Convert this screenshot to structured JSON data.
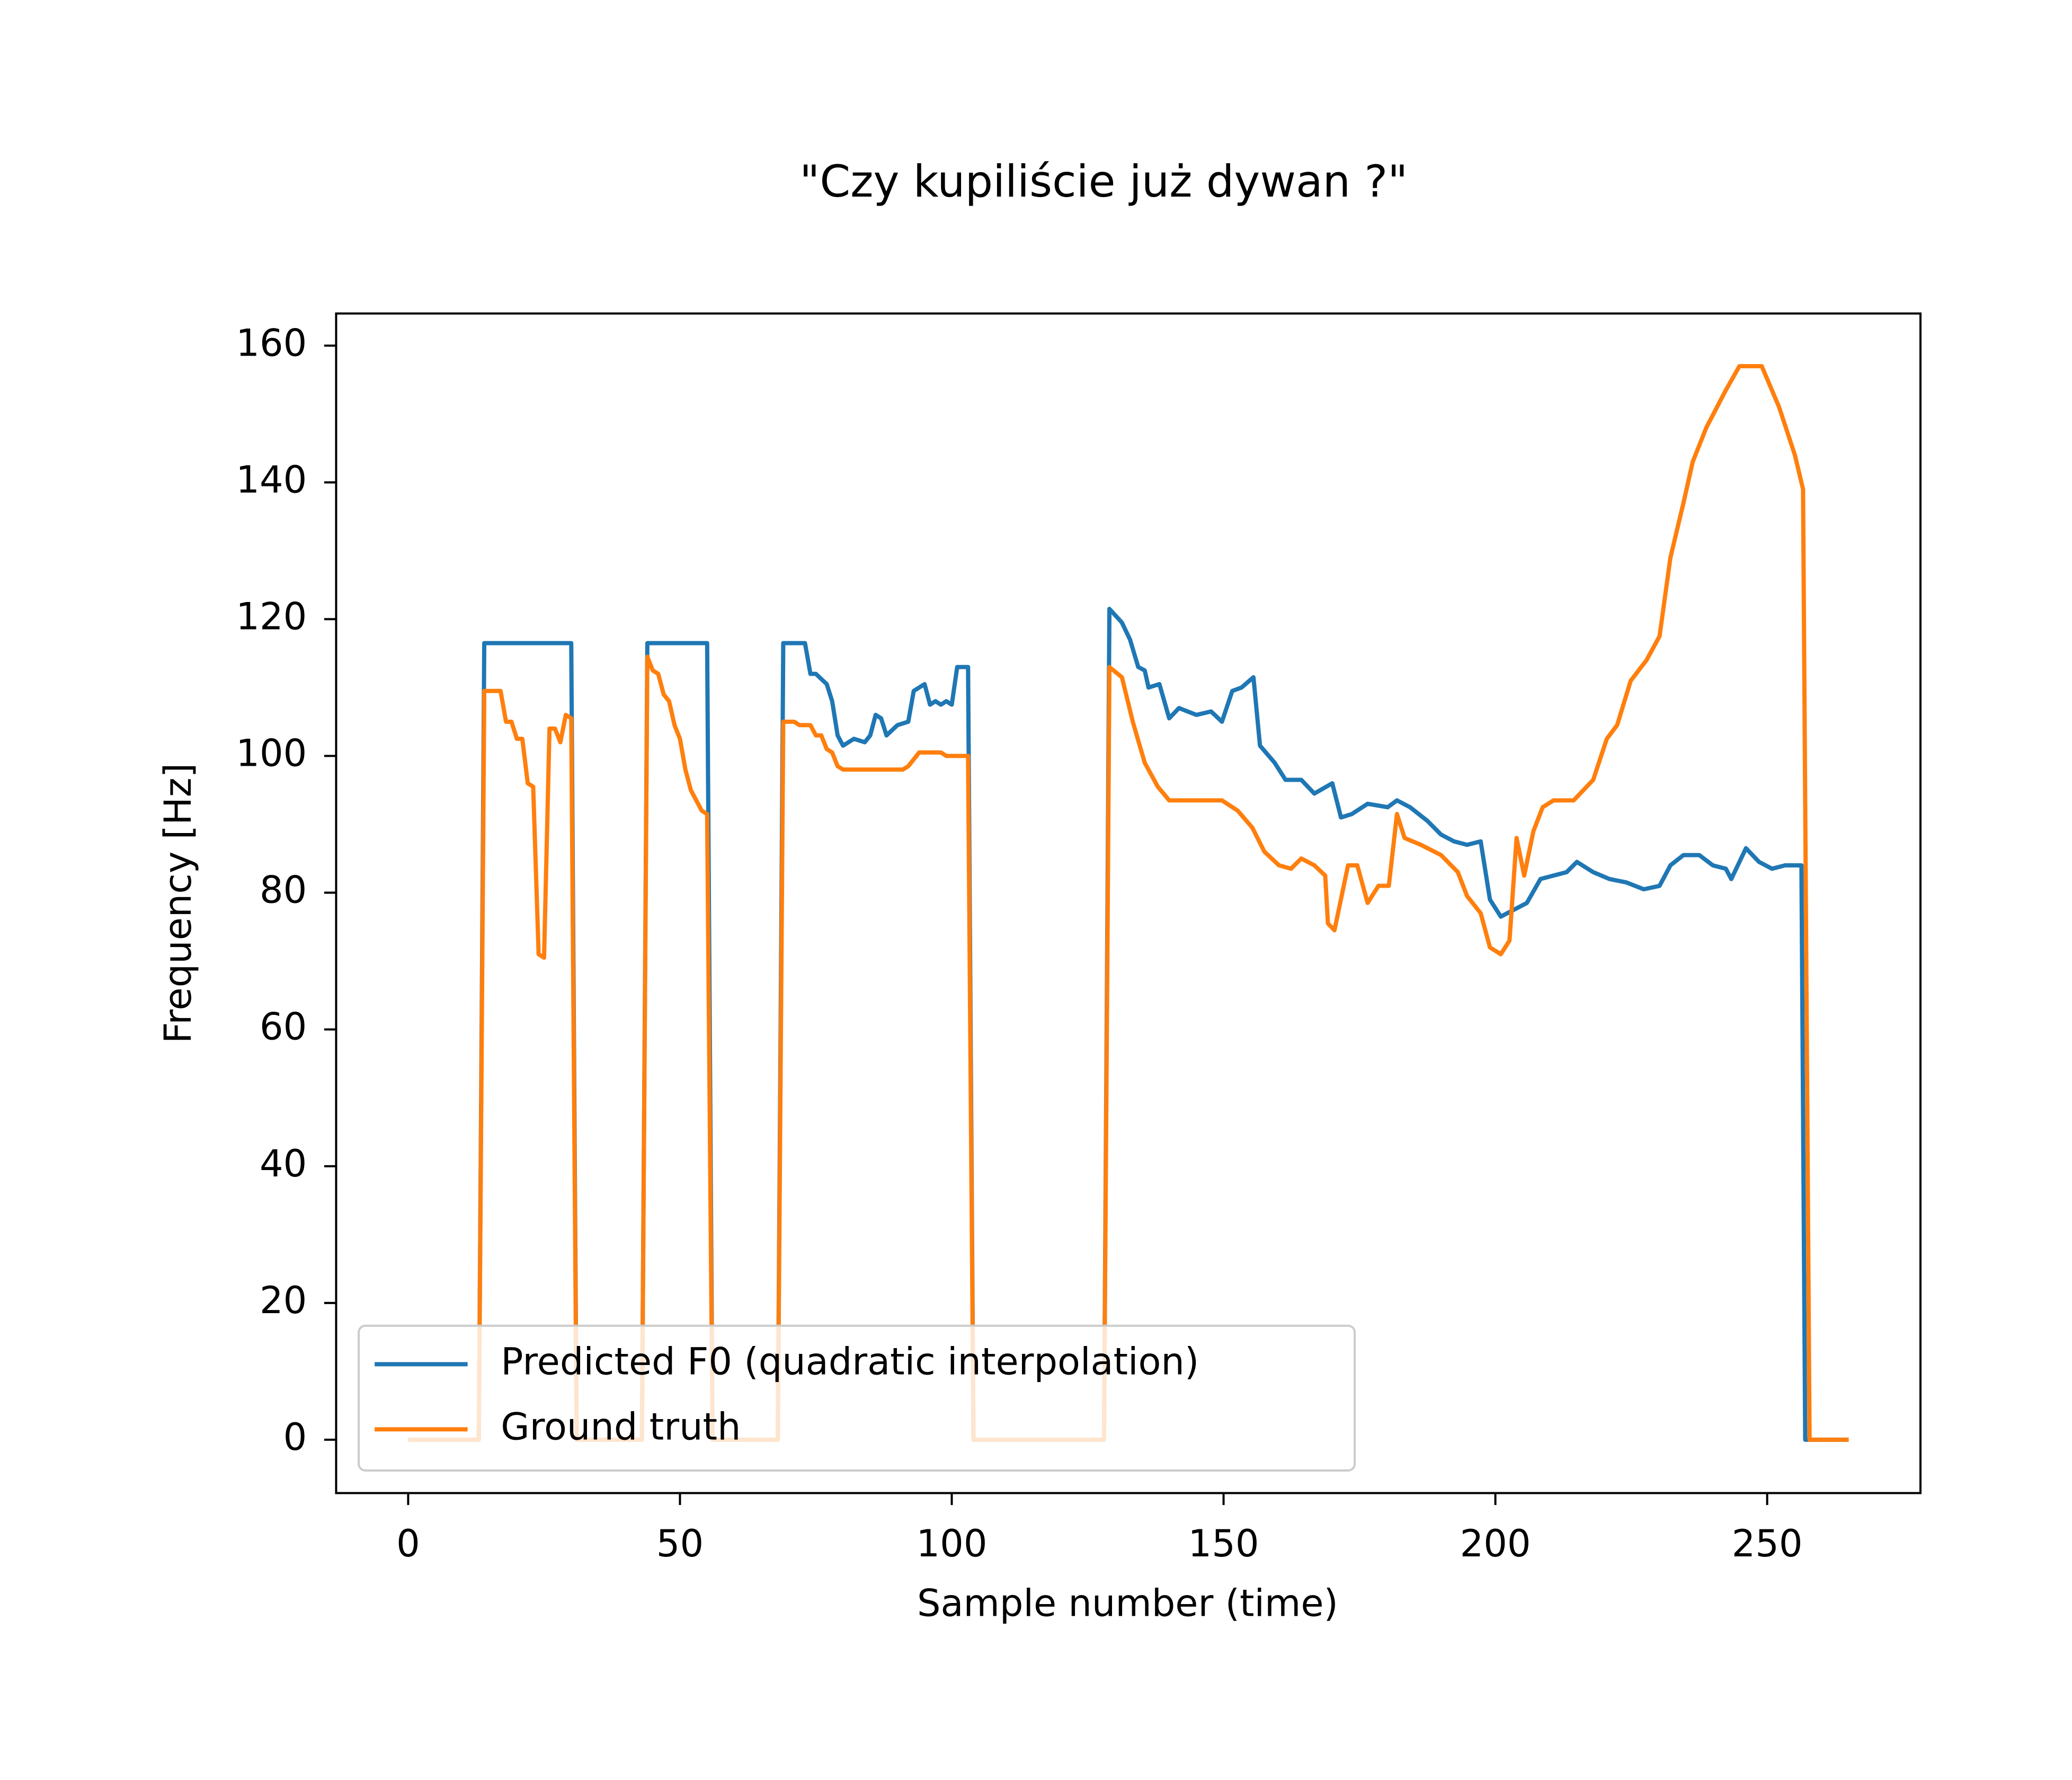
{
  "chart_data": {
    "type": "line",
    "title": "\"Czy kupiliście już dywan ?\"",
    "xlabel": "Sample number (time)",
    "ylabel": "Frequency [Hz]",
    "xlim": [
      -13.25,
      278.2
    ],
    "ylim": [
      -7.8,
      164.7
    ],
    "xticks": [
      0,
      50,
      100,
      150,
      200,
      250
    ],
    "yticks": [
      0,
      20,
      40,
      60,
      80,
      100,
      120,
      140,
      160
    ],
    "legend": "lower left",
    "grid": false,
    "series": [
      {
        "name": "Predicted F0 (quadratic interpolation)",
        "color": "#1f77b4",
        "x": [
          0,
          13,
          14,
          30,
          31,
          43,
          44,
          55,
          56,
          68,
          69,
          73,
          74,
          75,
          77,
          78,
          79,
          80,
          82,
          84,
          85,
          86,
          87,
          88,
          90,
          92,
          93,
          95,
          96,
          97,
          98,
          99,
          100,
          101,
          103,
          104,
          128,
          129,
          131.3,
          132.8,
          134.3,
          135.5,
          136.2,
          138.2,
          140,
          141.8,
          145,
          147.7,
          149.7,
          151.6,
          153.3,
          155.5,
          156.7,
          159.4,
          161.4,
          164.3,
          166.7,
          170,
          171.6,
          173.6,
          176.5,
          180.2,
          181.9,
          184.3,
          187.5,
          190,
          192.4,
          194.8,
          197.3,
          199,
          201,
          203.4,
          205.8,
          208.3,
          210.7,
          213.1,
          215,
          218,
          221,
          224.1,
          227.3,
          230.2,
          232.2,
          234.6,
          237.5,
          240,
          242.4,
          243.4,
          246.1,
          248.5,
          250.9,
          253.3,
          256.3,
          257,
          265
        ],
        "values": [
          0,
          0,
          116.5,
          116.5,
          0,
          0,
          116.5,
          116.5,
          0,
          0,
          116.5,
          116.5,
          112,
          112,
          110.5,
          108,
          103,
          101.5,
          102.5,
          102,
          103,
          106,
          105.5,
          103,
          104.5,
          105,
          109.5,
          110.5,
          107.5,
          108,
          107.5,
          108,
          107.5,
          113,
          113,
          0,
          0,
          121.5,
          119.5,
          117,
          113,
          112.5,
          110,
          110.5,
          105.5,
          107,
          106,
          106.5,
          105,
          109.5,
          110,
          111.5,
          101.5,
          99,
          96.5,
          96.5,
          94.5,
          96,
          91,
          91.5,
          93,
          92.5,
          93.5,
          92.5,
          90.5,
          88.5,
          87.5,
          87,
          87.5,
          79,
          76.5,
          77.5,
          78.5,
          82,
          82.5,
          83,
          84.5,
          83,
          82,
          81.5,
          80.5,
          81,
          84,
          85.5,
          85.5,
          84,
          83.5,
          82,
          86.5,
          84.5,
          83.5,
          84,
          84,
          0,
          0
        ]
      },
      {
        "name": "Ground truth",
        "color": "#ff7f0e",
        "x": [
          0,
          13,
          14,
          17,
          18,
          19,
          20,
          21,
          22,
          23,
          24,
          25,
          26,
          27,
          28,
          29,
          30,
          31,
          43,
          44,
          45,
          46,
          47,
          48,
          49,
          50,
          51,
          52,
          53,
          54,
          55,
          56,
          68,
          69,
          71,
          72,
          74,
          75,
          76,
          77,
          78,
          79,
          80,
          91,
          92,
          93,
          94,
          98,
          99,
          103,
          104,
          128,
          129,
          131.3,
          133.3,
          135.5,
          137.9,
          140,
          145,
          149.7,
          152.6,
          155.3,
          157.5,
          160.2,
          162.4,
          164.3,
          166.7,
          168.7,
          169.2,
          170.4,
          172.9,
          174.6,
          176.5,
          178.5,
          180.4,
          181.9,
          183.3,
          186.3,
          190,
          193.1,
          194.8,
          197.3,
          199,
          201,
          202.6,
          203.9,
          205.3,
          207,
          208.7,
          210.7,
          214.4,
          218,
          220.5,
          222.4,
          224.9,
          227.8,
          230.2,
          232.2,
          234.6,
          236.3,
          238.8,
          242.4,
          244.9,
          249,
          252.2,
          255.1,
          256.6,
          257.8,
          265
        ],
        "values": [
          0,
          0,
          109.5,
          109.5,
          105,
          105,
          102.5,
          102.5,
          96,
          95.5,
          71,
          70.5,
          104,
          104,
          102,
          106,
          105.5,
          0,
          0,
          114.5,
          112.5,
          112,
          109,
          108,
          104.5,
          102.5,
          98,
          95,
          93.5,
          92,
          91.5,
          0,
          0,
          105,
          105,
          104.5,
          104.5,
          103,
          103,
          101,
          100.5,
          98.5,
          98,
          98,
          98.5,
          99.5,
          100.5,
          100.5,
          100,
          100,
          0,
          0,
          113,
          111.5,
          105,
          99,
          95.5,
          93.5,
          93.5,
          93.5,
          92,
          89.5,
          86,
          84,
          83.5,
          85,
          84,
          82.5,
          75.5,
          74.5,
          84,
          84,
          78.5,
          81,
          81,
          91.5,
          88,
          87,
          85.5,
          83,
          79.5,
          77,
          72,
          71,
          73,
          88,
          82.5,
          89,
          92.5,
          93.5,
          93.5,
          96.5,
          102.5,
          104.5,
          111,
          114,
          117.5,
          129,
          137,
          143,
          148,
          153.5,
          157,
          157,
          151,
          144,
          139,
          0,
          0
        ]
      }
    ]
  }
}
